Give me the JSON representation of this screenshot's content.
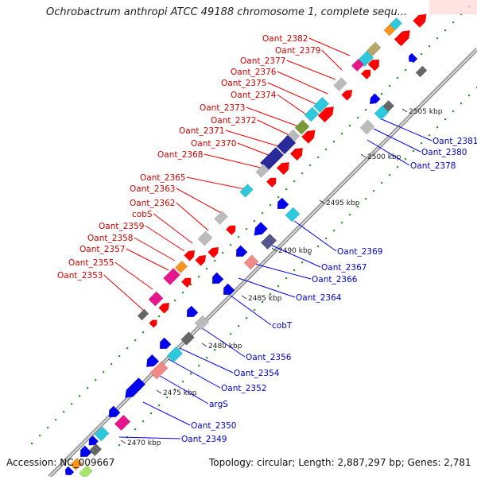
{
  "title": "Ochrobactrum anthropi ATCC 49188 chromosome 1, complete sequ...",
  "footer": {
    "accession": "Accession: NC_009667",
    "summary": "Topology: circular; Length: 2,887,297 bp; Genes: 2,781"
  },
  "scale_labels": [
    "2470 kbp",
    "2475 kbp",
    "2480 kbp",
    "2485 kbp",
    "2490 kbp",
    "2495 kbp",
    "2500 kbp",
    "2505 kbp"
  ],
  "left_labels": [
    "Oant_2382",
    "Oant_2379",
    "Oant_2377",
    "Oant_2376",
    "Oant_2375",
    "Oant_2374",
    "Oant_2373",
    "Oant_2372",
    "Oant_2371",
    "Oant_2370",
    "Oant_2368",
    "Oant_2365",
    "Oant_2363",
    "Oant_2362",
    "cobS",
    "Oant_2359",
    "Oant_2358",
    "Oant_2357",
    "Oant_2355",
    "Oant_2353"
  ],
  "right_labels": [
    "Oant_2381",
    "Oant_2380",
    "Oant_2378",
    "Oant_2369",
    "Oant_2367",
    "Oant_2366",
    "Oant_2364",
    "cobT",
    "Oant_2356",
    "Oant_2354",
    "Oant_2352",
    "argS",
    "Oant_2350",
    "Oant_2349"
  ],
  "colors": {
    "forward_strand": "#ff0000",
    "reverse_strand": "#0000ee",
    "cyan": "#2ec8dc",
    "gray": "#bbbbbb",
    "dark_gray": "#666666",
    "magenta": "#e6168c",
    "orange": "#f7941d",
    "navy": "#2a2a9a",
    "olive": "#7a9a3a",
    "tan": "#b6a86a",
    "salmon": "#f08a8a",
    "slate": "#555588",
    "light_green": "#a6e36a",
    "backbone": "#999999",
    "label_left": "#cc0000",
    "label_right": "#0000cc"
  }
}
